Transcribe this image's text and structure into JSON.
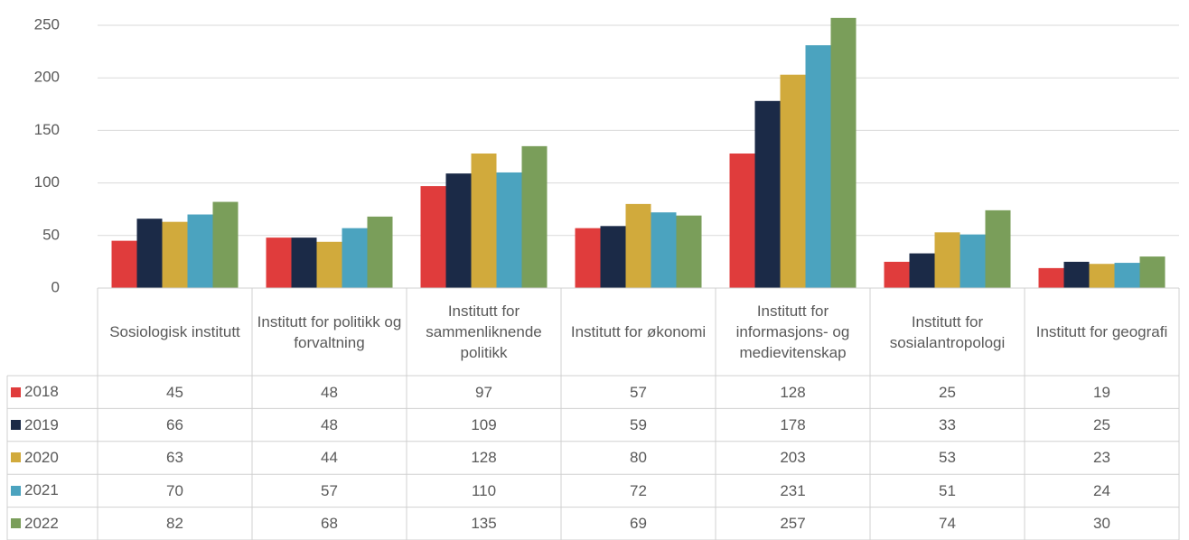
{
  "chart_data": {
    "type": "bar",
    "categories": [
      "Sosiologisk institutt",
      "Institutt for politikk og forvaltning",
      "Institutt for sammenliknende politikk",
      "Institutt for økonomi",
      "Institutt for informasjons- og medievitenskap",
      "Institutt for sosialantropologi",
      "Institutt for geografi"
    ],
    "series": [
      {
        "name": "2018",
        "color": "#e03c3c",
        "values": [
          45,
          48,
          97,
          57,
          128,
          25,
          19
        ]
      },
      {
        "name": "2019",
        "color": "#1b2a47",
        "values": [
          66,
          48,
          109,
          59,
          178,
          33,
          25
        ]
      },
      {
        "name": "2020",
        "color": "#d1aa3c",
        "values": [
          63,
          44,
          128,
          80,
          203,
          53,
          23
        ]
      },
      {
        "name": "2021",
        "color": "#4ba3bf",
        "values": [
          70,
          57,
          110,
          72,
          231,
          51,
          24
        ]
      },
      {
        "name": "2022",
        "color": "#7a9e5a",
        "values": [
          82,
          68,
          135,
          69,
          257,
          74,
          30
        ]
      }
    ],
    "ylim": [
      0,
      250
    ],
    "yticks": [
      0,
      50,
      100,
      150,
      200,
      250
    ],
    "grid": true,
    "data_table": true
  }
}
